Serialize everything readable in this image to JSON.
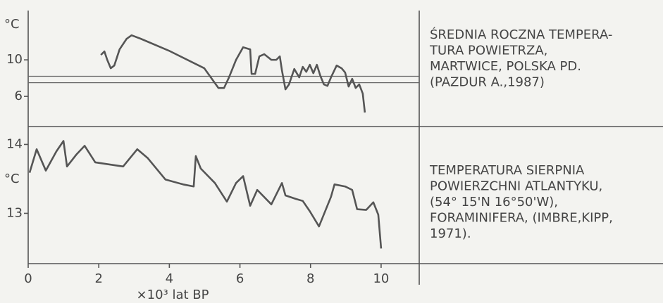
{
  "chart_data": [
    {
      "type": "line",
      "title_lines": [
        "ŚREDNIA ROCZNA TEMPERA-",
        "TURA POWIETRZA,",
        "MARTWICE, POLSKA PD.",
        "(PAZDUR A.,1987)"
      ],
      "ylabel": "°C",
      "xlim": [
        0,
        11.08
      ],
      "ylim": [
        2.85,
        15.4
      ],
      "yticks": [
        10,
        6
      ],
      "hlines": [
        8.2,
        7.5
      ],
      "color": "#555555",
      "x": [
        2.06,
        2.16,
        2.24,
        2.34,
        2.44,
        2.59,
        2.79,
        2.93,
        3.19,
        3.99,
        4.99,
        5.29,
        5.39,
        5.55,
        5.69,
        5.89,
        6.09,
        6.29,
        6.33,
        6.43,
        6.55,
        6.69,
        6.89,
        7.03,
        7.13,
        7.19,
        7.29,
        7.39,
        7.54,
        7.68,
        7.78,
        7.88,
        7.98,
        8.08,
        8.18,
        8.28,
        8.38,
        8.48,
        8.58,
        8.74,
        8.88,
        8.98,
        9.08,
        9.18,
        9.28,
        9.38,
        9.48,
        9.54
      ],
      "values": [
        10.54,
        10.92,
        10.0,
        9.08,
        9.38,
        11.15,
        12.31,
        12.69,
        12.31,
        11.0,
        9.08,
        7.46,
        6.92,
        6.92,
        8.08,
        10.0,
        11.38,
        11.15,
        8.46,
        8.46,
        10.38,
        10.62,
        10.0,
        10.0,
        10.38,
        8.85,
        6.77,
        7.31,
        9.0,
        8.08,
        9.23,
        8.69,
        9.46,
        8.54,
        9.46,
        8.23,
        7.31,
        7.15,
        8.08,
        9.38,
        9.08,
        8.62,
        7.08,
        7.92,
        6.92,
        7.31,
        6.31,
        4.23
      ]
    },
    {
      "type": "line",
      "title_lines": [
        "TEMPERATURA SIERPNIA",
        "POWIERZCHNI ATLANTYKU,",
        "(54° 15'N 16°50'W),",
        "FORAMINIFERA, (IMBRE,KIPP,",
        "1971)."
      ],
      "ylabel": "°C",
      "xlabel": "×10³ lat BP",
      "xlim": [
        0,
        11.08
      ],
      "xticks": [
        0,
        2,
        4,
        6,
        8,
        10
      ],
      "ylim": [
        12.27,
        14.28
      ],
      "yticks": [
        14,
        13
      ],
      "color": "#555555",
      "x": [
        0.04,
        0.24,
        0.5,
        0.8,
        1.0,
        1.1,
        1.36,
        1.6,
        1.9,
        2.69,
        3.09,
        3.39,
        3.89,
        4.39,
        4.69,
        4.75,
        4.89,
        5.29,
        5.63,
        5.89,
        6.09,
        6.29,
        6.49,
        6.89,
        7.19,
        7.29,
        7.58,
        7.78,
        7.98,
        8.24,
        8.58,
        8.68,
        8.98,
        9.18,
        9.32,
        9.58,
        9.78,
        9.92,
        10.0
      ],
      "values": [
        13.59,
        13.93,
        13.62,
        13.9,
        14.05,
        13.68,
        13.85,
        13.98,
        13.74,
        13.68,
        13.93,
        13.8,
        13.49,
        13.42,
        13.39,
        13.83,
        13.65,
        13.44,
        13.17,
        13.44,
        13.54,
        13.11,
        13.34,
        13.13,
        13.44,
        13.26,
        13.21,
        13.18,
        13.03,
        12.81,
        13.24,
        13.42,
        13.39,
        13.34,
        13.06,
        13.05,
        13.16,
        12.98,
        12.49
      ]
    }
  ]
}
